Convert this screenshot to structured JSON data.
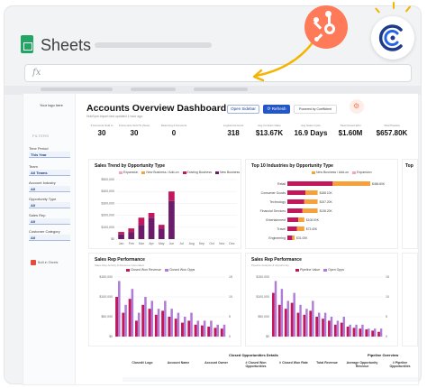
{
  "app": {
    "title": "Sheets",
    "formula_prefix": "fx"
  },
  "dashboard": {
    "title": "Accounts Overview Dashboard",
    "subtitle": "HubSpot Import last updated 1 hour ago",
    "logo_text": "Your logo here",
    "buttons": {
      "open_sidebar": "Open Sidebar",
      "refresh": "Refresh",
      "powered": "Powered by Coefficient"
    },
    "filters_heading": "FILTERS",
    "filters": [
      {
        "label": "Time Period",
        "value": "This Year"
      },
      {
        "label": "Team",
        "value": "All Teams"
      },
      {
        "label": "Account Industry",
        "value": "All"
      },
      {
        "label": "Opportunity Type",
        "value": "All"
      },
      {
        "label": "Sales Rep",
        "value": "All"
      },
      {
        "label": "Customer Category",
        "value": "All"
      }
    ],
    "sidebar_note": "Built in Sheets",
    "kpis": [
      {
        "label": "# Accounts Sold to",
        "value": "30"
      },
      {
        "label": "# Accounts Sold To (New)",
        "value": "30"
      },
      {
        "label": "Returning # Accounts",
        "value": "0"
      },
      {
        "label": "Logical Accounts",
        "value": "318"
      },
      {
        "label": "Avg Contract Value",
        "value": "$13.67K"
      },
      {
        "label": "Avg Sales Cycle",
        "value": "16.9 Days"
      },
      {
        "label": "Total Closed Won",
        "value": "$1.60M"
      },
      {
        "label": "Total Pipeline",
        "value": "$657.80K"
      }
    ]
  },
  "charts": {
    "sales_trend": {
      "title": "Sales Trend by Opportunity Type",
      "legend": [
        "Expansion",
        "New Business / Add-on",
        "Existing Business",
        "New Business"
      ],
      "legend_colors": [
        "#f4a3c8",
        "#f7a13d",
        "#c2185b",
        "#6a1b6a"
      ],
      "y_ticks": [
        "$0",
        "$100,000",
        "$200,000",
        "$300,000",
        "$400,000",
        "$500,000"
      ],
      "months": [
        "Jan",
        "Feb",
        "Mar",
        "Apr",
        "May",
        "Jun",
        "Jul",
        "Aug",
        "Sep",
        "Oct",
        "Nov",
        "Dec"
      ],
      "series": [
        {
          "name": "New Business",
          "color": "#6a1b6a",
          "values": [
            40000,
            60000,
            120000,
            180000,
            90000,
            320000,
            0,
            0,
            0,
            0,
            0,
            0
          ]
        },
        {
          "name": "Existing Business",
          "color": "#c2185b",
          "values": [
            20000,
            30000,
            60000,
            40000,
            30000,
            80000,
            0,
            0,
            0,
            0,
            0,
            0
          ]
        }
      ]
    },
    "industries": {
      "title": "Top 10 Industries by Opportunity Type",
      "legend": [
        "New Business / Add-on",
        "Expansion"
      ],
      "legend_colors": [
        "#f7a13d",
        "#f4a3c8"
      ],
      "categories": [
        "Retail",
        "Consumer Goods",
        "Technology",
        "Financial Services",
        "Entertainment",
        "Travel",
        "Engineering"
      ],
      "values": [
        {
          "a": 75,
          "b": 62
        },
        {
          "a": 30,
          "b": 20
        },
        {
          "a": 28,
          "b": 22
        },
        {
          "a": 25,
          "b": 25
        },
        {
          "a": 18,
          "b": 10
        },
        {
          "a": 16,
          "b": 12
        },
        {
          "a": 8,
          "b": 4
        }
      ],
      "value_labels": [
        "$456.80K",
        "$188.10K",
        "$157.20K",
        "$138.20K",
        "$108.50K",
        "$73.40K",
        "$31.00K"
      ]
    },
    "rep_perf_1": {
      "title": "Sales Rep Performance",
      "subtitle": "Sales Rep Activity & Revenue Generated",
      "legend": [
        "Closed Won Revenue",
        "Closed Won Opps"
      ],
      "legend_colors": [
        "#c2185b",
        "#b07cd8"
      ],
      "y_ticks": [
        "$0",
        "$50,000",
        "$100,000",
        "$150,000"
      ],
      "y2_ticks": [
        "0",
        "5",
        "10",
        "15"
      ],
      "bars": [
        100,
        60,
        95,
        40,
        80,
        70,
        55,
        65,
        50,
        45,
        35,
        40,
        30,
        28,
        25,
        22,
        20
      ],
      "opps": [
        14,
        8,
        12,
        6,
        10,
        9,
        7,
        9,
        7,
        6,
        5,
        6,
        4,
        4,
        4,
        3,
        3
      ]
    },
    "rep_perf_2": {
      "title": "Sales Rep Performance",
      "subtitle": "Pipeline Analysis & Opportunity",
      "legend": [
        "Pipeline Value",
        "Open Opps"
      ],
      "legend_colors": [
        "#c2185b",
        "#b07cd8"
      ],
      "y_ticks": [
        "$0",
        "$50,000",
        "$100,000",
        "$150,000"
      ],
      "y2_ticks": [
        "0",
        "5",
        "10",
        "15"
      ],
      "bars": [
        110,
        80,
        70,
        85,
        60,
        55,
        65,
        50,
        45,
        40,
        30,
        35,
        25,
        22,
        20,
        18,
        15,
        12
      ],
      "opps": [
        14,
        12,
        9,
        11,
        8,
        7,
        9,
        6,
        6,
        5,
        4,
        5,
        3,
        3,
        3,
        2,
        2,
        2
      ]
    },
    "third_title": "Top"
  },
  "tables": {
    "closed_title": "Closed Opportunities Details",
    "pipeline_title": "Pipeline Overview",
    "headers": [
      "Closed# Logo",
      "Account Name",
      "Account Owner",
      "# Closed Won Opportunities",
      "# Closed Won Rate",
      "Total Revenue",
      "Average Opportunity Revenue",
      "# Pipeline Opportunities"
    ]
  },
  "colors": {
    "accent": "#2457c5",
    "brand_primary": "#c2185b",
    "brand_dark": "#6a1b6a",
    "hubspot": "#ff7a59",
    "sheets_green": "#23a566"
  }
}
